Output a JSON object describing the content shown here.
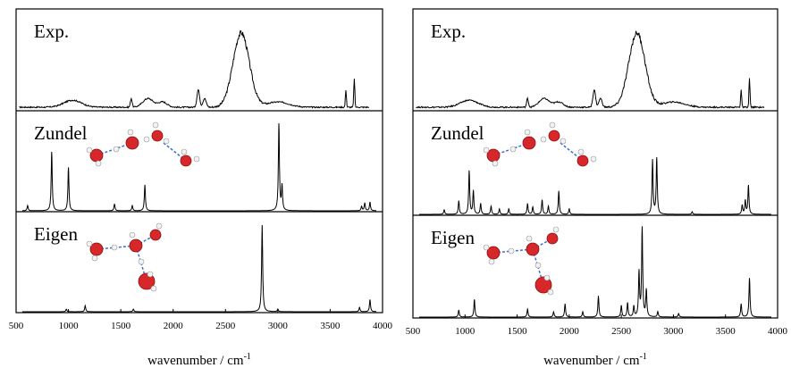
{
  "chart_data": [
    {
      "type": "line",
      "title": "",
      "xlabel": "wavenumber / cm",
      "xlabel_superscript": "-1",
      "ylabel": "",
      "xlim": [
        500,
        4000
      ],
      "xticks": [
        500,
        1000,
        1500,
        2000,
        2500,
        3000,
        3500,
        4000
      ],
      "grid": false,
      "legend": "none",
      "panels": [
        {
          "label": "Exp.",
          "kind": "broad",
          "baseline": 0.02,
          "noise": 0.015,
          "peaks": [
            {
              "x": 1040,
              "h": 0.08,
              "w": 120
            },
            {
              "x": 1600,
              "h": 0.1,
              "w": 12
            },
            {
              "x": 1760,
              "h": 0.1,
              "w": 70
            },
            {
              "x": 1900,
              "h": 0.06,
              "w": 60
            },
            {
              "x": 2240,
              "h": 0.2,
              "w": 18
            },
            {
              "x": 2300,
              "h": 0.1,
              "w": 22
            },
            {
              "x": 2650,
              "h": 0.85,
              "w": 110
            },
            {
              "x": 3000,
              "h": 0.06,
              "w": 150
            },
            {
              "x": 3650,
              "h": 0.2,
              "w": 7
            },
            {
              "x": 3730,
              "h": 0.33,
              "w": 7
            }
          ]
        },
        {
          "label": "Zundel",
          "kind": "sticks",
          "peaks": [
            {
              "x": 610,
              "h": 0.06
            },
            {
              "x": 840,
              "h": 0.68
            },
            {
              "x": 1000,
              "h": 0.5
            },
            {
              "x": 1440,
              "h": 0.08
            },
            {
              "x": 1610,
              "h": 0.06
            },
            {
              "x": 1730,
              "h": 0.3
            },
            {
              "x": 3010,
              "h": 1.0
            },
            {
              "x": 3040,
              "h": 0.28
            },
            {
              "x": 3800,
              "h": 0.05
            },
            {
              "x": 3830,
              "h": 0.09
            },
            {
              "x": 3880,
              "h": 0.1
            }
          ]
        },
        {
          "label": "Eigen",
          "kind": "sticks",
          "peaks": [
            {
              "x": 980,
              "h": 0.03
            },
            {
              "x": 1160,
              "h": 0.07
            },
            {
              "x": 1620,
              "h": 0.03
            },
            {
              "x": 2850,
              "h": 1.0
            },
            {
              "x": 3000,
              "h": 0.03
            },
            {
              "x": 3780,
              "h": 0.05
            },
            {
              "x": 3880,
              "h": 0.14
            }
          ]
        }
      ]
    },
    {
      "type": "line",
      "title": "",
      "xlabel": "wavenumber / cm",
      "xlabel_superscript": "-1",
      "ylabel": "",
      "xlim": [
        500,
        4000
      ],
      "xticks": [
        500,
        1000,
        1500,
        2000,
        2500,
        3000,
        3500,
        4000
      ],
      "grid": false,
      "legend": "none",
      "panels": [
        {
          "label": "Exp.",
          "kind": "broad",
          "baseline": 0.02,
          "noise": 0.015,
          "peaks": [
            {
              "x": 1040,
              "h": 0.08,
              "w": 120
            },
            {
              "x": 1600,
              "h": 0.1,
              "w": 12
            },
            {
              "x": 1760,
              "h": 0.1,
              "w": 70
            },
            {
              "x": 1900,
              "h": 0.06,
              "w": 60
            },
            {
              "x": 2240,
              "h": 0.2,
              "w": 18
            },
            {
              "x": 2300,
              "h": 0.1,
              "w": 22
            },
            {
              "x": 2650,
              "h": 0.85,
              "w": 110
            },
            {
              "x": 3000,
              "h": 0.06,
              "w": 150
            },
            {
              "x": 3650,
              "h": 0.2,
              "w": 7
            },
            {
              "x": 3730,
              "h": 0.33,
              "w": 7
            }
          ]
        },
        {
          "label": "Zundel",
          "kind": "sticks",
          "peaks": [
            {
              "x": 800,
              "h": 0.05
            },
            {
              "x": 940,
              "h": 0.15
            },
            {
              "x": 1040,
              "h": 0.48
            },
            {
              "x": 1080,
              "h": 0.26
            },
            {
              "x": 1150,
              "h": 0.12
            },
            {
              "x": 1250,
              "h": 0.09
            },
            {
              "x": 1330,
              "h": 0.06
            },
            {
              "x": 1420,
              "h": 0.06
            },
            {
              "x": 1600,
              "h": 0.12
            },
            {
              "x": 1650,
              "h": 0.08
            },
            {
              "x": 1740,
              "h": 0.16
            },
            {
              "x": 1800,
              "h": 0.09
            },
            {
              "x": 1900,
              "h": 0.26
            },
            {
              "x": 2000,
              "h": 0.06
            },
            {
              "x": 2800,
              "h": 0.6
            },
            {
              "x": 2840,
              "h": 0.62
            },
            {
              "x": 3180,
              "h": 0.03
            },
            {
              "x": 3660,
              "h": 0.1
            },
            {
              "x": 3690,
              "h": 0.15
            },
            {
              "x": 3720,
              "h": 0.32
            }
          ]
        },
        {
          "label": "Eigen",
          "kind": "sticks",
          "peaks": [
            {
              "x": 940,
              "h": 0.08
            },
            {
              "x": 1090,
              "h": 0.2
            },
            {
              "x": 1600,
              "h": 0.09
            },
            {
              "x": 1850,
              "h": 0.06
            },
            {
              "x": 1960,
              "h": 0.15
            },
            {
              "x": 2130,
              "h": 0.06
            },
            {
              "x": 2280,
              "h": 0.24
            },
            {
              "x": 2500,
              "h": 0.13
            },
            {
              "x": 2560,
              "h": 0.16
            },
            {
              "x": 2620,
              "h": 0.12
            },
            {
              "x": 2670,
              "h": 0.5
            },
            {
              "x": 2700,
              "h": 1.0
            },
            {
              "x": 2740,
              "h": 0.3
            },
            {
              "x": 2850,
              "h": 0.06
            },
            {
              "x": 3050,
              "h": 0.04
            },
            {
              "x": 3650,
              "h": 0.15
            },
            {
              "x": 3730,
              "h": 0.44
            }
          ]
        }
      ]
    }
  ]
}
